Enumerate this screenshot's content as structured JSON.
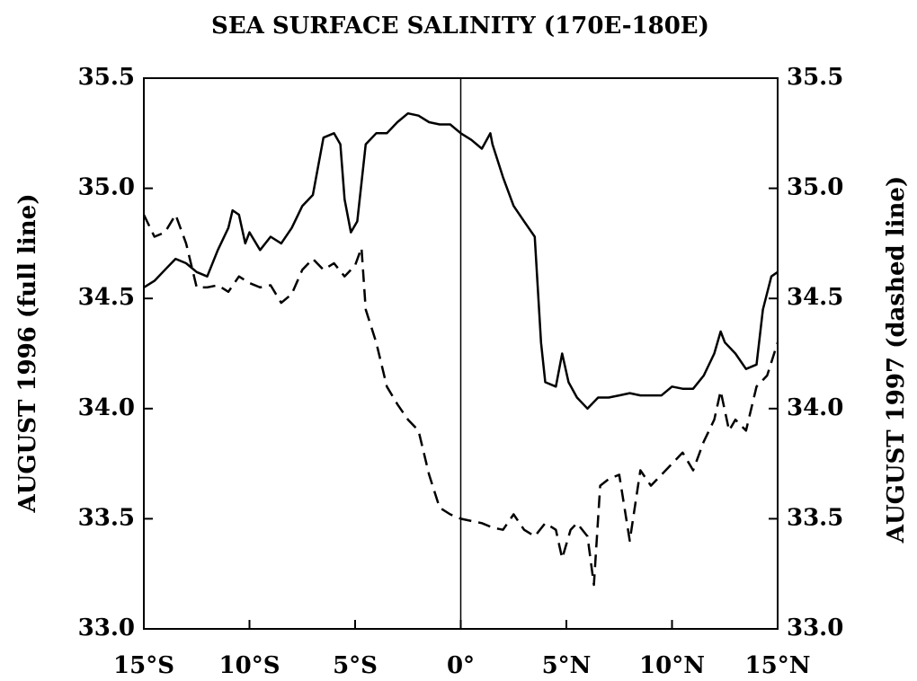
{
  "chart_data": {
    "type": "line",
    "title": "SEA SURFACE SALINITY (170E-180E)",
    "ylabel": "AUGUST 1996 (full line)",
    "y2label": "AUGUST 1997 (dashed line)",
    "xlim": [
      -15,
      15
    ],
    "xticks": [
      {
        "value": -15,
        "label": "15°S"
      },
      {
        "value": -10,
        "label": "10°S"
      },
      {
        "value": -5,
        "label": "5°S"
      },
      {
        "value": 0,
        "label": "0°"
      },
      {
        "value": 5,
        "label": "5°N"
      },
      {
        "value": 10,
        "label": "10°N"
      },
      {
        "value": 15,
        "label": "15°N"
      }
    ],
    "ylim": [
      33.0,
      35.5
    ],
    "yticks": [
      {
        "value": 33.0,
        "label": "33.0"
      },
      33.5,
      {
        "value": 34.0,
        "label": "34.0"
      },
      34.5,
      {
        "value": 35.0,
        "label": "35.0"
      },
      35.5
    ],
    "y2lim": [
      33.0,
      35.5
    ],
    "y2ticks": [
      {
        "value": 33.0,
        "label": "33.0"
      },
      33.5,
      {
        "value": 34.0,
        "label": "34.0"
      },
      34.5,
      {
        "value": 35.0,
        "label": "35.0"
      },
      35.5
    ],
    "series": [
      {
        "color": "#000000",
        "dash": "solid",
        "x": [
          -15,
          -14.5,
          -14,
          -13.5,
          -13,
          -12.5,
          -12,
          -11.5,
          -11,
          -10.8,
          -10.5,
          -10.2,
          -10,
          -9.5,
          -9,
          -8.5,
          -8,
          -7.5,
          -7,
          -6.5,
          -6,
          -5.7,
          -5.5,
          -5.2,
          -4.9,
          -4.5,
          -4,
          -3.5,
          -3,
          -2.5,
          -2,
          -1.5,
          -1,
          -0.5,
          0,
          0.5,
          1,
          1.4,
          1.5,
          2,
          2.5,
          3,
          3.5,
          3.8,
          4,
          4.5,
          4.8,
          5.1,
          5.5,
          6,
          6.5,
          7,
          7.5,
          8,
          8.5,
          9,
          9.5,
          10,
          10.5,
          11,
          11.5,
          12,
          12.3,
          12.5,
          13,
          13.5,
          14,
          14.3,
          14.7,
          15
        ],
        "values": [
          34.55,
          34.58,
          34.63,
          34.68,
          34.66,
          34.62,
          34.6,
          34.72,
          34.82,
          34.9,
          34.88,
          34.75,
          34.8,
          34.72,
          34.78,
          34.75,
          34.82,
          34.92,
          34.97,
          35.23,
          35.25,
          35.2,
          34.95,
          34.8,
          34.85,
          35.2,
          35.25,
          35.25,
          35.3,
          35.34,
          35.33,
          35.3,
          35.29,
          35.29,
          35.25,
          35.22,
          35.18,
          35.25,
          35.2,
          35.05,
          34.92,
          34.85,
          34.78,
          34.3,
          34.12,
          34.1,
          34.25,
          34.12,
          34.05,
          34.0,
          34.05,
          34.05,
          34.06,
          34.07,
          34.06,
          34.06,
          34.06,
          34.1,
          34.09,
          34.09,
          34.15,
          34.25,
          34.35,
          34.3,
          34.25,
          34.18,
          34.2,
          34.45,
          34.6,
          34.62
        ]
      },
      {
        "color": "#000000",
        "dash": "dashed",
        "axis": "y2",
        "x": [
          -15,
          -14.5,
          -14,
          -13.5,
          -13,
          -12.5,
          -12,
          -11.5,
          -11,
          -10.5,
          -10,
          -9.5,
          -9,
          -8.5,
          -8,
          -7.5,
          -7,
          -6.5,
          -6,
          -5.5,
          -5,
          -4.7,
          -4.5,
          -4,
          -3.5,
          -3,
          -2.5,
          -2,
          -1.5,
          -1,
          -0.5,
          0,
          0.5,
          1,
          1.5,
          2,
          2.5,
          3,
          3.5,
          4,
          4.5,
          4.8,
          5.2,
          5.5,
          6,
          6.3,
          6.6,
          7,
          7.5,
          8,
          8.5,
          9,
          9.5,
          10,
          10.5,
          11,
          11.5,
          12,
          12.3,
          12.7,
          13,
          13.5,
          14,
          14.5,
          15
        ],
        "values": [
          34.88,
          34.78,
          34.8,
          34.88,
          34.75,
          34.55,
          34.55,
          34.56,
          34.53,
          34.6,
          34.57,
          34.55,
          34.56,
          34.48,
          34.52,
          34.63,
          34.68,
          34.63,
          34.66,
          34.6,
          34.65,
          34.73,
          34.45,
          34.3,
          34.1,
          34.02,
          33.95,
          33.9,
          33.7,
          33.55,
          33.52,
          33.5,
          33.49,
          33.48,
          33.46,
          33.45,
          33.52,
          33.45,
          33.42,
          33.48,
          33.45,
          33.32,
          33.45,
          33.48,
          33.42,
          33.2,
          33.65,
          33.68,
          33.7,
          33.4,
          33.72,
          33.65,
          33.7,
          33.75,
          33.8,
          33.72,
          33.85,
          33.95,
          34.08,
          33.9,
          33.95,
          33.9,
          34.1,
          34.15,
          34.3
        ]
      }
    ]
  }
}
